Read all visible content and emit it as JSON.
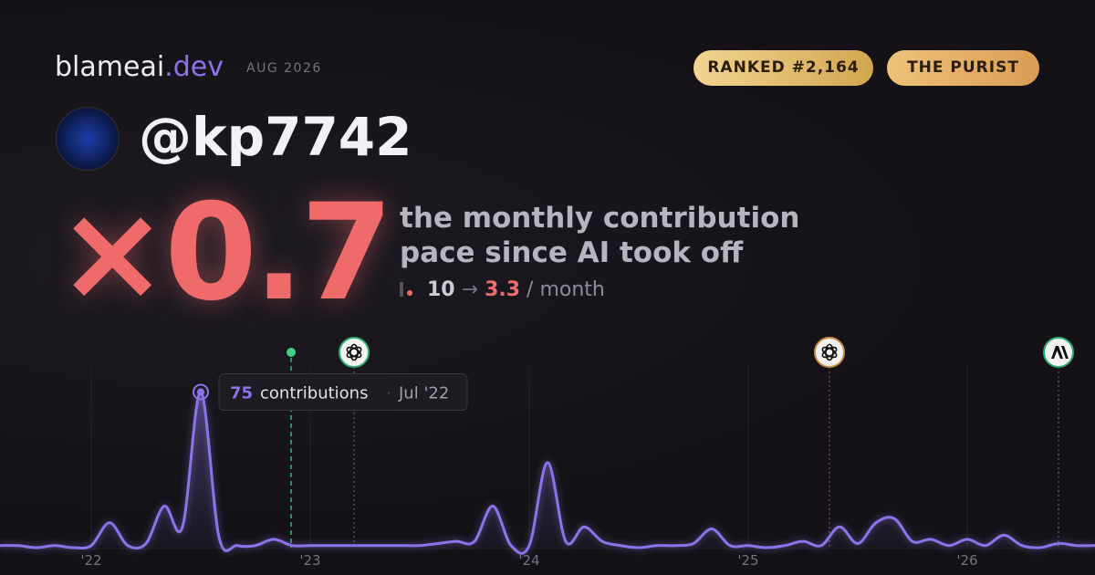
{
  "brand": {
    "name": "blameai",
    "tld": ".dev"
  },
  "date": "AUG 2026",
  "badges": [
    "RANKED #2,164",
    "THE PURIST"
  ],
  "handle": "@kp7742",
  "multiplier": "×0.7",
  "description": [
    "the monthly contribution",
    "pace since AI took off"
  ],
  "pace": {
    "before": "10",
    "arrow": "→",
    "after": "3.3",
    "unit": "/ month"
  },
  "tooltip": {
    "label": "contributions",
    "date": "Jul '22"
  },
  "chart_data": {
    "type": "line",
    "color": "#8b74e8",
    "categories": [
      null,
      null,
      null,
      null,
      null,
      "'22",
      null,
      null,
      null,
      null,
      null,
      null,
      null,
      null,
      null,
      null,
      null,
      "'23",
      null,
      null,
      null,
      null,
      null,
      null,
      null,
      null,
      null,
      null,
      null,
      "'24",
      null,
      null,
      null,
      null,
      null,
      null,
      null,
      null,
      null,
      null,
      null,
      "'25",
      null,
      null,
      null,
      null,
      null,
      null,
      null,
      null,
      null,
      null,
      null,
      "'26",
      null,
      null,
      null,
      null,
      null,
      null,
      null
    ],
    "values": [
      1,
      1,
      0,
      1,
      0,
      1,
      12,
      1,
      2,
      20,
      10,
      75,
      5,
      1,
      1,
      4,
      1,
      1,
      1,
      1,
      1,
      1,
      1,
      1,
      2,
      3,
      3,
      20,
      1,
      1,
      41,
      3,
      10,
      3,
      1,
      0,
      1,
      1,
      2,
      9,
      1,
      1,
      0,
      1,
      3,
      1,
      10,
      2,
      12,
      14,
      3,
      4,
      1,
      4,
      1,
      6,
      1,
      0,
      2,
      1,
      1
    ],
    "ylim": [
      0,
      88
    ],
    "grid": true
  }
}
